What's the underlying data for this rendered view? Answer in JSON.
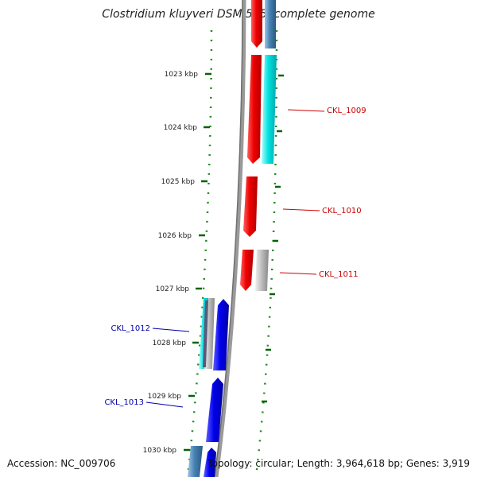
{
  "title": "Clostridium kluyveri DSM 555, complete genome",
  "accession": "Accession: NC_009706",
  "topology": "Topology: circular; Length: 3,964,618 bp; Genes: 3,919",
  "scale_labels": [
    "1023 kbp",
    "1024 kbp",
    "1025 kbp",
    "1026 kbp",
    "1027 kbp",
    "1028 kbp",
    "1029 kbp",
    "1030 kbp"
  ],
  "genes": [
    {
      "name": "CKL_1009",
      "strand": "forward"
    },
    {
      "name": "CKL_1010",
      "strand": "forward"
    },
    {
      "name": "CKL_1011",
      "strand": "forward"
    },
    {
      "name": "CKL_1012",
      "strand": "reverse"
    },
    {
      "name": "CKL_1013",
      "strand": "reverse"
    }
  ],
  "colors": {
    "forward_label": "#cc0000",
    "reverse_label": "#0000aa",
    "red_gene": "#ee0000",
    "cyan_gene": "#00dddd",
    "blue_gene": "#0000ee",
    "steelblue_gene": "#4682b4",
    "grey_gene": "#bbbbbb",
    "backbone": "#808080",
    "tick": "#006400",
    "dot": "#228b22"
  }
}
